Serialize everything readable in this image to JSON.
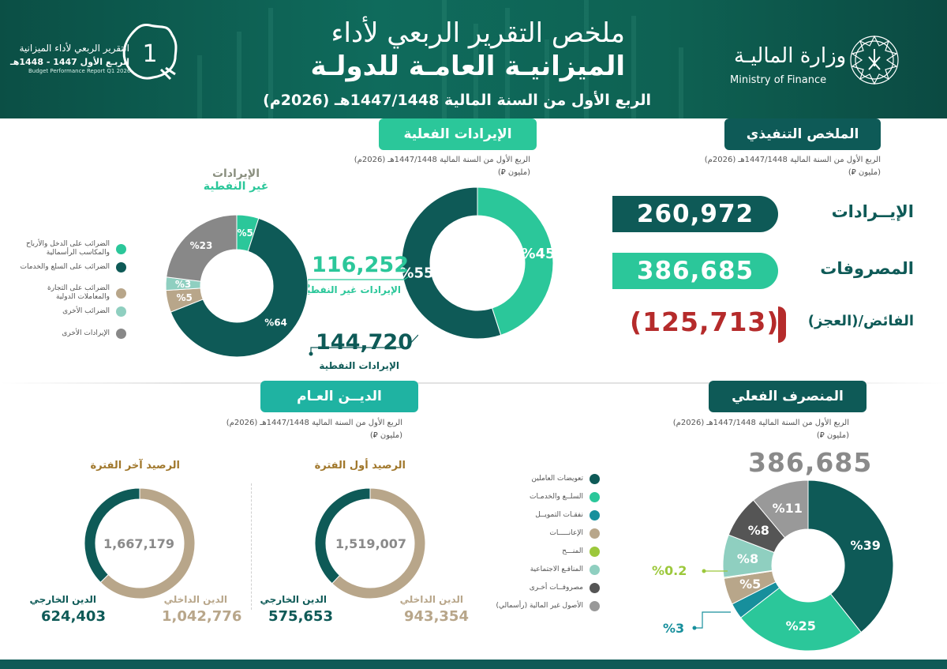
{
  "header": {
    "title_line1": "ملخص التقرير الربعي لأداء",
    "title_line2": "الميزانيـة العامـة للدولـة",
    "subtitle": "الربع الأول من السنة المالية 1447/1448هـ (2026م)",
    "ministry_ar": "وزارة الماليـة",
    "ministry_en": "Ministry of Finance",
    "report_ar_line1": "التقرير الربعي لأداء الميزانية",
    "report_ar_line2": "الربـع الأول 1447 - 1448هـ",
    "report_en": "Budget Performance Report Q1 2026",
    "report_number": "1"
  },
  "meta": {
    "period": "الربع الأول من السنة المالية 1447/1448هـ (2026م)",
    "unit": "(مليون ⃁)"
  },
  "executive_summary": {
    "title": "الملخص التنفيذي",
    "revenues_label": "الإيــرادات",
    "revenues_value": "260,972",
    "expenditures_label": "المصروفات",
    "expenditures_value": "386,685",
    "balance_label": "الفائض/(العجز)",
    "balance_value": "(125,713)"
  },
  "actual_revenues": {
    "title": "الإيرادات الفعلية",
    "non_oil_value": "116,252",
    "non_oil_label": "الإيرادات غير النفطية",
    "oil_value": "144,720",
    "oil_label": "الإيرادات النفطية",
    "non_oil_chart_title_1": "الإيرادات",
    "non_oil_chart_title_2": "غير النفطية"
  },
  "public_debt": {
    "title": "الديــن العـام",
    "start": {
      "title": "الرصيد أول الفترة",
      "total": "1,519,007",
      "domestic_label": "الدين الداخلي",
      "domestic_value": "943,354",
      "external_label": "الدين الخارجي",
      "external_value": "575,653"
    },
    "end": {
      "title": "الرصيد آخر الفترة",
      "total": "1,667,179",
      "domestic_label": "الدين الداخلي",
      "domestic_value": "1,042,776",
      "external_label": "الدين الخارجي",
      "external_value": "624,403"
    }
  },
  "actual_expenditure": {
    "title": "المنصرف الفعلي",
    "total": "386,685"
  },
  "revenue_legend": [
    {
      "label": "الضرائب على الدخل والأرباح والمكاسب الرأسمالية",
      "color": "#2bc79a"
    },
    {
      "label": "الضرائب على السلع والخدمات",
      "color": "#0e5a57"
    },
    {
      "label": "الضرائب على التجارة والمعاملات الدولية",
      "color": "#b8a68a"
    },
    {
      "label": "الضرائب الأخرى",
      "color": "#8fcfc0"
    },
    {
      "label": "الإيرادات الأخرى",
      "color": "#888888"
    }
  ],
  "expenditure_legend": [
    {
      "label": "تعويضات العاملين",
      "color": "#0e5a57"
    },
    {
      "label": "السلــع والخدمـات",
      "color": "#2bc79a"
    },
    {
      "label": "نفقـات التمويــل",
      "color": "#178f9c"
    },
    {
      "label": "الإعانـــــات",
      "color": "#b8a68a"
    },
    {
      "label": "المنـــح",
      "color": "#9cc83b"
    },
    {
      "label": "المنافـع الاجتماعية",
      "color": "#8fcfc0"
    },
    {
      "label": "مصروفــات أخـرى",
      "color": "#555555"
    },
    {
      "label": "الأصول غير المالية (رأسمالي)",
      "color": "#999999"
    }
  ],
  "chart_data": [
    {
      "type": "pie",
      "title": "الإيرادات الفعلية",
      "categories": [
        "الإيرادات غير النفطية",
        "الإيرادات النفطية"
      ],
      "values": [
        45,
        55
      ],
      "labels": [
        "%45",
        "%55"
      ],
      "colors": [
        "#2bc79a",
        "#0e5a57"
      ]
    },
    {
      "type": "pie",
      "title": "الإيرادات غير النفطية",
      "categories": [
        "الضرائب على الدخل والأرباح والمكاسب الرأسمالية",
        "الضرائب على السلع والخدمات",
        "الضرائب على التجارة والمعاملات الدولية",
        "الضرائب الأخرى",
        "الإيرادات الأخرى"
      ],
      "values": [
        5,
        64,
        5,
        3,
        23
      ],
      "labels": [
        "%5",
        "%64",
        "%5",
        "%3",
        "%23"
      ],
      "colors": [
        "#2bc79a",
        "#0e5a57",
        "#b8a68a",
        "#8fcfc0",
        "#888888"
      ]
    },
    {
      "type": "pie",
      "title": "الرصيد أول الفترة",
      "categories": [
        "الدين الداخلي",
        "الدين الخارجي"
      ],
      "values": [
        943354,
        575653
      ],
      "colors": [
        "#b8a68a",
        "#0e5a57"
      ]
    },
    {
      "type": "pie",
      "title": "الرصيد آخر الفترة",
      "categories": [
        "الدين الداخلي",
        "الدين الخارجي"
      ],
      "values": [
        1042776,
        624403
      ],
      "colors": [
        "#b8a68a",
        "#0e5a57"
      ]
    },
    {
      "type": "pie",
      "title": "المنصرف الفعلي",
      "categories": [
        "تعويضات العاملين",
        "السلــع والخدمـات",
        "نفقـات التمويــل",
        "الإعانـــــات",
        "المنـــح",
        "المنافـع الاجتماعية",
        "مصروفــات أخـرى",
        "الأصول غير المالية (رأسمالي)"
      ],
      "values": [
        39,
        25,
        3,
        5,
        0.2,
        8,
        8,
        11
      ],
      "labels": [
        "%39",
        "%25",
        "%3",
        "%5",
        "%0.2",
        "%8",
        "%8",
        "%11"
      ],
      "colors": [
        "#0e5a57",
        "#2bc79a",
        "#178f9c",
        "#b8a68a",
        "#9cc83b",
        "#8fcfc0",
        "#555555",
        "#999999"
      ]
    }
  ]
}
